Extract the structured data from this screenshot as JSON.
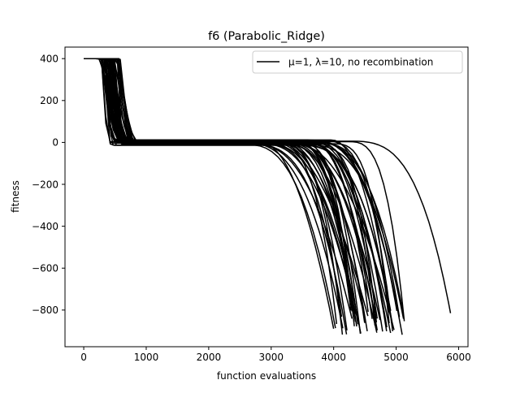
{
  "chart_data": {
    "type": "line",
    "title": "f6 (Parabolic_Ridge)",
    "xlabel": "function evaluations",
    "ylabel": "fitness",
    "xlim": [
      -300,
      6150
    ],
    "ylim": [
      -975,
      455
    ],
    "xticks": [
      0,
      1000,
      2000,
      3000,
      4000,
      5000,
      6000
    ],
    "yticks": [
      400,
      200,
      0,
      -200,
      -400,
      -600,
      -800
    ],
    "grid": false,
    "legend": {
      "position": "upper right",
      "entries": [
        "μ=1, λ=10, no recombination"
      ]
    },
    "line_color": "#000000",
    "run_parameters": {
      "runs": 50,
      "x_start": 0,
      "initial_fitness": 400,
      "drop_start_range": [
        280,
        600
      ],
      "plateau_range": [
        -14,
        14
      ],
      "final_fitness_range": [
        -920,
        -800
      ],
      "final_evaluations_range": [
        3990,
        5130
      ],
      "straggler_run": {
        "final_evaluations": 5870,
        "final_fitness": -815
      }
    }
  }
}
